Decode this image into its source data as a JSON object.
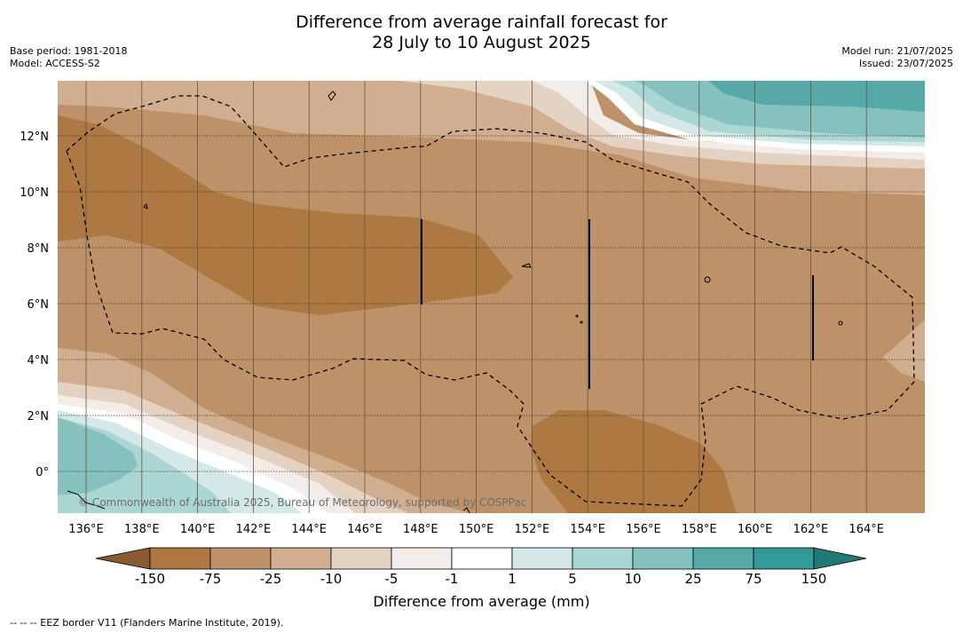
{
  "title_line1": "Difference from average rainfall forecast for",
  "title_line2": "28 July to 10 August 2025",
  "base_period": "Base period: 1981-2018",
  "model": "Model: ACCESS-S2",
  "model_run": "Model run: 21/07/2025",
  "issued": "Issued: 23/07/2025",
  "copyright": "© Commonwealth of Australia 2025, Bureau of Meteorology, supported by COSPPac",
  "lon_ticks": [
    "136°E",
    "138°E",
    "140°E",
    "142°E",
    "144°E",
    "146°E",
    "148°E",
    "150°E",
    "152°E",
    "154°E",
    "156°E",
    "158°E",
    "160°E",
    "162°E",
    "164°E"
  ],
  "lat_ticks": [
    "12°N",
    "10°N",
    "8°N",
    "6°N",
    "4°N",
    "2°N",
    "0°"
  ],
  "colorbar": {
    "title": "Difference from average (mm)",
    "labels": [
      "-150",
      "-75",
      "-25",
      "-10",
      "-5",
      "-1",
      "1",
      "5",
      "10",
      "25",
      "75",
      "150"
    ],
    "colors": [
      "#8a5a33",
      "#ad7841",
      "#bd9269",
      "#d0ae8f",
      "#e4d2c2",
      "#f2ede8",
      "#ffffff",
      "#d4e9e7",
      "#aad6d4",
      "#84c1bf",
      "#56a9a7",
      "#339a97",
      "#227a78"
    ]
  },
  "footnote": "--  --  -- EEZ border V11 (Flanders Marine Institute, 2019)."
}
